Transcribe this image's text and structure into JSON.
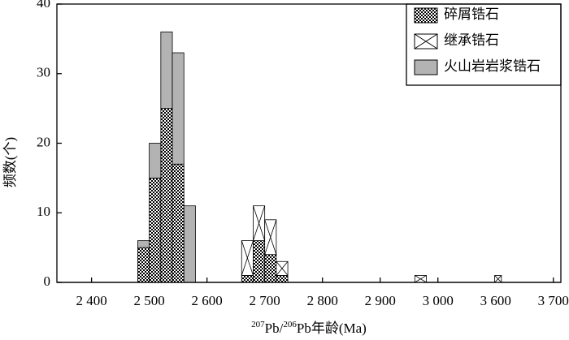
{
  "chart_data": {
    "type": "histogram",
    "y_label": "频数(个)",
    "x_label_parts": [
      "207",
      "Pb/",
      "206",
      "Pb年龄(Ma)"
    ],
    "bins": [
      2480,
      2500,
      2520,
      2540,
      2560,
      2580,
      2660,
      2680,
      2700,
      2720,
      2740,
      2960,
      2980,
      3590,
      3610
    ],
    "series": [
      {
        "name": "碎屑锆石",
        "color": "#000000",
        "pattern": "checker",
        "values": [
          5,
          15,
          25,
          17,
          0,
          0,
          1,
          6,
          4,
          1,
          0,
          0,
          0,
          0
        ]
      },
      {
        "name": "继承锆石",
        "color": "#000000",
        "pattern": "cross",
        "values": [
          0,
          0,
          0,
          0,
          0,
          0,
          5,
          5,
          5,
          2,
          0,
          1,
          0,
          1
        ]
      },
      {
        "name": "火山岩岩浆锆石",
        "color": "#b3b3b3",
        "pattern": "solid",
        "values": [
          1,
          5,
          11,
          16,
          11,
          0,
          0,
          0,
          0,
          0,
          0,
          0,
          0,
          0
        ]
      }
    ],
    "stacked": true,
    "xlim": [
      2340,
      3713
    ],
    "xticks": [
      {
        "value": 2400,
        "label": "2 400"
      },
      {
        "value": 2500,
        "label": "2 500"
      },
      {
        "value": 2600,
        "label": "2 600"
      },
      {
        "value": 2700,
        "label": "2 700"
      },
      {
        "value": 2800,
        "label": "2 800"
      },
      {
        "value": 2900,
        "label": "2 900"
      },
      {
        "value": 3000,
        "label": "3 000"
      },
      {
        "value": 3600,
        "label": "3 600"
      },
      {
        "value": 3700,
        "label": "3 700"
      }
    ],
    "ylim": [
      0,
      40
    ],
    "yticks": [
      0,
      10,
      20,
      30,
      40
    ],
    "legend": "upper right"
  }
}
